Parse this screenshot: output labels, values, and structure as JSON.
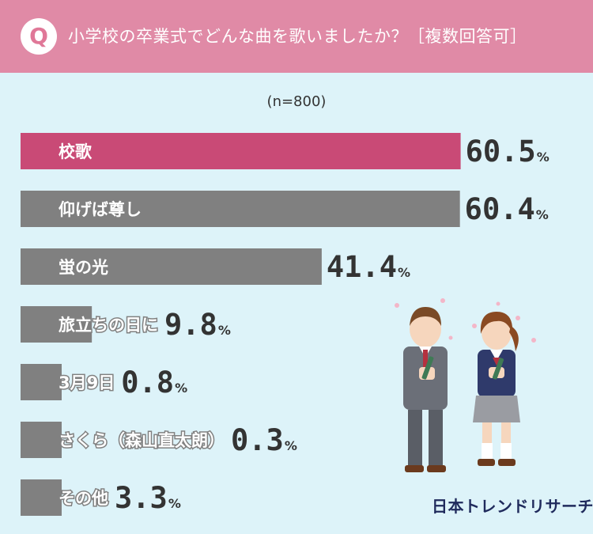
{
  "header": {
    "badge": "Q",
    "question": "小学校の卒業式でどんな曲を歌いましたか？［複数回答可］"
  },
  "sample_size": "(n=800)",
  "brand": "日本トレンドリサーチ",
  "colors": {
    "header_bg": "#e08aa6",
    "page_bg": "#ddf3f9",
    "highlight_bar": "#c94a76",
    "bar": "#808080",
    "text": "#333333"
  },
  "chart_data": {
    "type": "bar",
    "orientation": "horizontal",
    "unit": "%",
    "categories": [
      "校歌",
      "仰げば尊し",
      "蛍の光",
      "旅立ちの日に",
      "3月9日",
      "さくら（森山直太朗）",
      "その他"
    ],
    "values": [
      60.5,
      60.4,
      41.4,
      9.8,
      0.8,
      0.3,
      3.3
    ],
    "value_labels": [
      "60.5",
      "60.4",
      "41.4",
      "9.8",
      "0.8",
      "0.3",
      "3.3"
    ],
    "highlight_index": 0,
    "xlim": [
      0,
      100
    ],
    "grid": false,
    "legend": "none"
  }
}
